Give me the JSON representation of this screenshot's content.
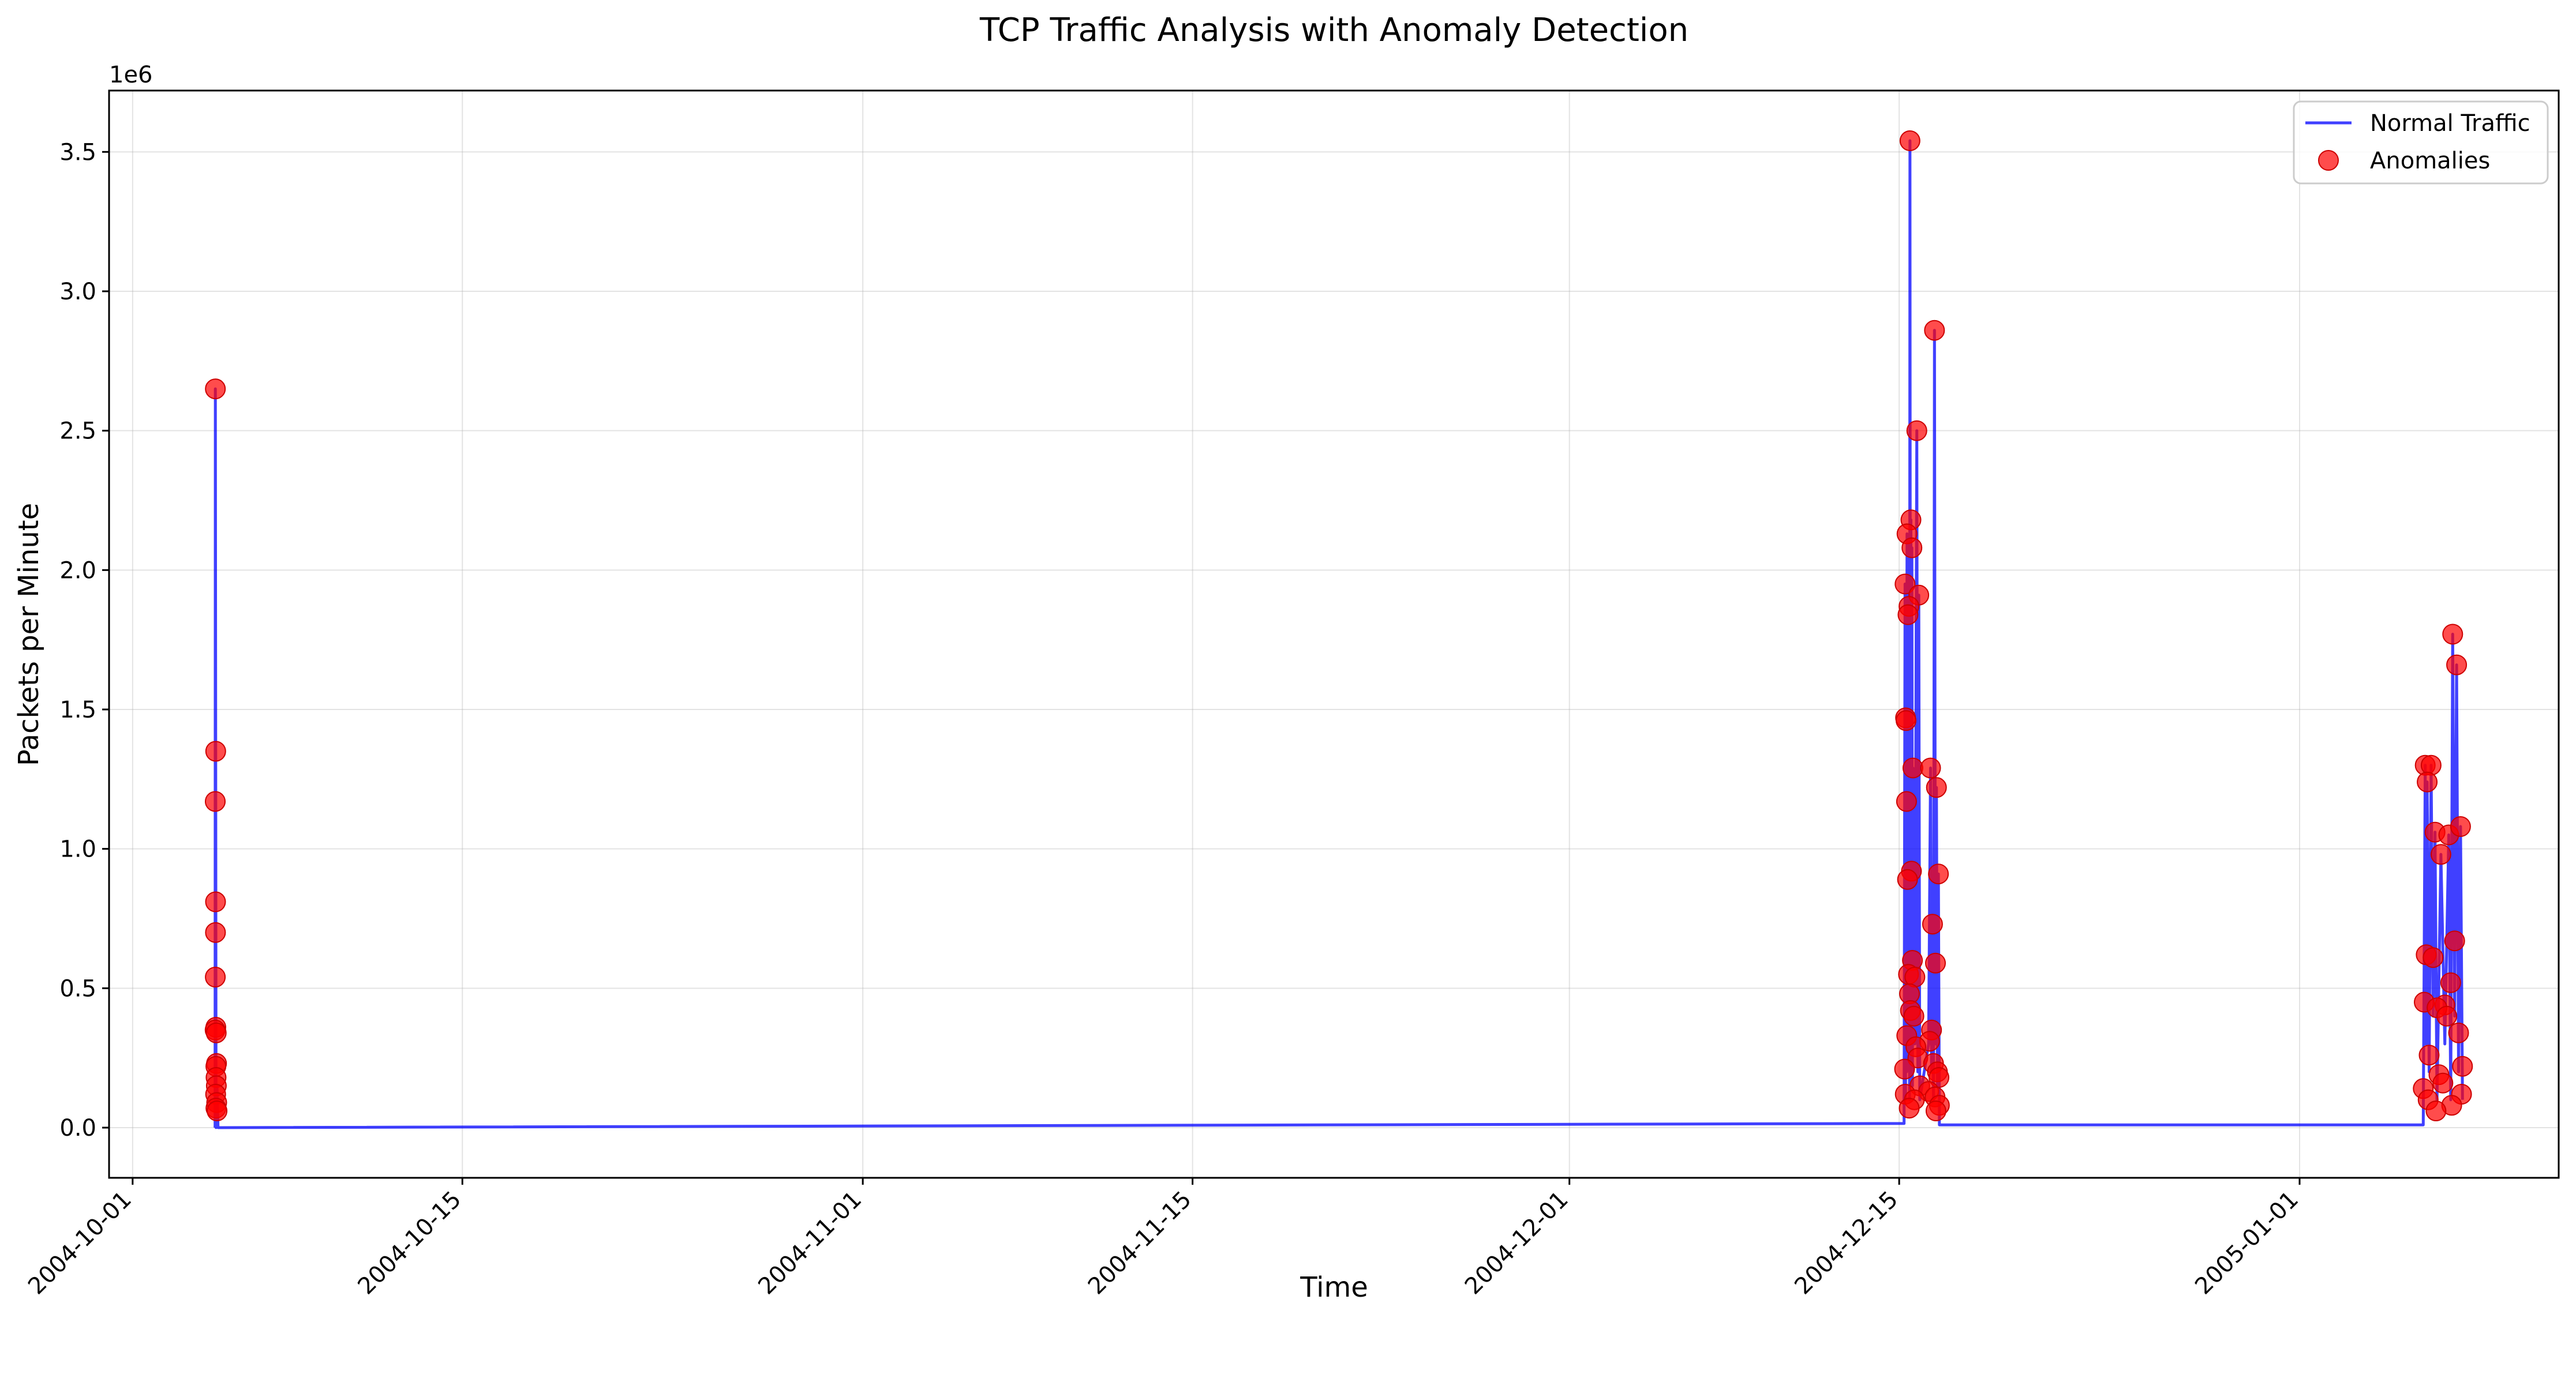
{
  "chart_data": {
    "type": "line",
    "title": "TCP Traffic Analysis with Anomaly Detection",
    "xlabel": "Time",
    "ylabel": "Packets per Minute",
    "y_offset_label": "1e6",
    "x_ticks": [
      "2004-10-01",
      "2004-10-15",
      "2004-11-01",
      "2004-11-15",
      "2004-12-01",
      "2004-12-15",
      "2005-01-01"
    ],
    "y_ticks": [
      "0.0",
      "0.5",
      "1.0",
      "1.5",
      "2.0",
      "2.5",
      "3.0",
      "3.5"
    ],
    "y_tick_values": [
      0,
      500000,
      1000000,
      1500000,
      2000000,
      2500000,
      3000000,
      3500000
    ],
    "xlim": [
      "2004-09-30T00:00",
      "2005-01-12T00:00"
    ],
    "ylim": [
      -180000,
      3720000
    ],
    "grid": true,
    "legend_position": "top-right",
    "colors": {
      "line": "#0000ff",
      "anomaly": "#ff0000"
    },
    "series": [
      {
        "name": "Normal Traffic",
        "kind": "line",
        "points": [
          [
            "2004-10-04T12:00",
            0
          ],
          [
            "2004-10-04T12:20",
            2650000
          ],
          [
            "2004-10-04T12:40",
            1350000
          ],
          [
            "2004-10-04T13:00",
            0
          ],
          [
            "2004-10-04T14:00",
            150000
          ],
          [
            "2004-10-04T15:00",
            0
          ],
          [
            "2004-12-15T05:00",
            15000
          ],
          [
            "2004-12-15T06:00",
            1950000
          ],
          [
            "2004-12-15T06:30",
            100000
          ],
          [
            "2004-12-15T07:00",
            1470000
          ],
          [
            "2004-12-15T07:30",
            200000
          ],
          [
            "2004-12-15T08:00",
            2130000
          ],
          [
            "2004-12-15T08:30",
            300000
          ],
          [
            "2004-12-15T09:00",
            1840000
          ],
          [
            "2004-12-15T09:30",
            400000
          ],
          [
            "2004-12-15T10:00",
            1870000
          ],
          [
            "2004-12-15T10:30",
            100000
          ],
          [
            "2004-12-15T11:00",
            3540000
          ],
          [
            "2004-12-15T11:30",
            500000
          ],
          [
            "2004-12-15T12:00",
            2180000
          ],
          [
            "2004-12-15T12:30",
            200000
          ],
          [
            "2004-12-15T13:00",
            2080000
          ],
          [
            "2004-12-15T13:30",
            150000
          ],
          [
            "2004-12-15T14:00",
            1290000
          ],
          [
            "2004-12-15T16:00",
            300000
          ],
          [
            "2004-12-15T18:00",
            2500000
          ],
          [
            "2004-12-15T19:00",
            200000
          ],
          [
            "2004-12-15T20:00",
            1910000
          ],
          [
            "2004-12-15T21:00",
            100000
          ],
          [
            "2004-12-16T06:00",
            300000
          ],
          [
            "2004-12-16T08:00",
            1290000
          ],
          [
            "2004-12-16T09:00",
            200000
          ],
          [
            "2004-12-16T10:00",
            730000
          ],
          [
            "2004-12-16T11:00",
            100000
          ],
          [
            "2004-12-16T12:00",
            2860000
          ],
          [
            "2004-12-16T13:00",
            300000
          ],
          [
            "2004-12-16T14:00",
            1220000
          ],
          [
            "2004-12-16T15:00",
            150000
          ],
          [
            "2004-12-16T16:00",
            910000
          ],
          [
            "2004-12-16T17:00",
            10000
          ],
          [
            "2005-01-06T06:00",
            10000
          ],
          [
            "2005-01-06T08:00",
            1300000
          ],
          [
            "2005-01-06T09:00",
            300000
          ],
          [
            "2005-01-06T10:00",
            1240000
          ],
          [
            "2005-01-06T12:00",
            200000
          ],
          [
            "2005-01-06T14:00",
            1300000
          ],
          [
            "2005-01-06T16:00",
            400000
          ],
          [
            "2005-01-06T18:00",
            1060000
          ],
          [
            "2005-01-06T20:00",
            100000
          ],
          [
            "2005-01-07T00:00",
            980000
          ],
          [
            "2005-01-07T04:00",
            300000
          ],
          [
            "2005-01-07T08:00",
            1050000
          ],
          [
            "2005-01-07T10:00",
            100000
          ],
          [
            "2005-01-07T12:00",
            1770000
          ],
          [
            "2005-01-07T14:00",
            400000
          ],
          [
            "2005-01-07T16:00",
            1660000
          ],
          [
            "2005-01-07T18:00",
            200000
          ],
          [
            "2005-01-07T20:00",
            1080000
          ],
          [
            "2005-01-07T22:00",
            100000
          ]
        ]
      },
      {
        "name": "Anomalies",
        "kind": "scatter",
        "points": [
          [
            "2004-10-04T12:20",
            2650000
          ],
          [
            "2004-10-04T12:40",
            1350000
          ],
          [
            "2004-10-04T12:10",
            1170000
          ],
          [
            "2004-10-04T12:30",
            810000
          ],
          [
            "2004-10-04T12:25",
            700000
          ],
          [
            "2004-10-04T12:15",
            540000
          ],
          [
            "2004-10-04T12:45",
            360000
          ],
          [
            "2004-10-04T12:05",
            350000
          ],
          [
            "2004-10-04T13:10",
            340000
          ],
          [
            "2004-10-04T13:30",
            230000
          ],
          [
            "2004-10-04T12:50",
            220000
          ],
          [
            "2004-10-04T13:00",
            180000
          ],
          [
            "2004-10-04T13:20",
            150000
          ],
          [
            "2004-10-04T12:35",
            120000
          ],
          [
            "2004-10-04T13:40",
            90000
          ],
          [
            "2004-10-04T12:55",
            70000
          ],
          [
            "2004-10-04T14:00",
            60000
          ],
          [
            "2004-12-15T11:00",
            3540000
          ],
          [
            "2004-12-16T12:00",
            2860000
          ],
          [
            "2004-12-15T18:00",
            2500000
          ],
          [
            "2004-12-15T12:00",
            2180000
          ],
          [
            "2004-12-15T08:00",
            2130000
          ],
          [
            "2004-12-15T13:00",
            2080000
          ],
          [
            "2004-12-15T06:00",
            1950000
          ],
          [
            "2004-12-15T20:00",
            1910000
          ],
          [
            "2004-12-15T10:00",
            1870000
          ],
          [
            "2004-12-15T09:00",
            1840000
          ],
          [
            "2004-12-15T06:30",
            1470000
          ],
          [
            "2004-12-15T07:00",
            1460000
          ],
          [
            "2004-12-15T14:00",
            1290000
          ],
          [
            "2004-12-16T08:00",
            1290000
          ],
          [
            "2004-12-16T14:00",
            1220000
          ],
          [
            "2004-12-15T07:30",
            1170000
          ],
          [
            "2004-12-15T12:30",
            920000
          ],
          [
            "2004-12-16T16:00",
            910000
          ],
          [
            "2004-12-15T08:30",
            890000
          ],
          [
            "2004-12-16T10:00",
            730000
          ],
          [
            "2004-12-15T13:30",
            600000
          ],
          [
            "2004-12-16T13:00",
            590000
          ],
          [
            "2004-12-15T09:30",
            550000
          ],
          [
            "2004-12-15T16:00",
            540000
          ],
          [
            "2004-12-15T10:30",
            480000
          ],
          [
            "2004-12-15T11:30",
            420000
          ],
          [
            "2004-12-15T15:00",
            400000
          ],
          [
            "2004-12-16T09:00",
            350000
          ],
          [
            "2004-12-15T07:45",
            330000
          ],
          [
            "2004-12-16T07:00",
            310000
          ],
          [
            "2004-12-15T17:00",
            290000
          ],
          [
            "2004-12-15T19:00",
            250000
          ],
          [
            "2004-12-16T11:00",
            230000
          ],
          [
            "2004-12-15T05:30",
            210000
          ],
          [
            "2004-12-16T15:00",
            200000
          ],
          [
            "2004-12-16T16:30",
            180000
          ],
          [
            "2004-12-15T21:00",
            150000
          ],
          [
            "2004-12-16T06:00",
            130000
          ],
          [
            "2004-12-15T06:15",
            120000
          ],
          [
            "2004-12-16T12:30",
            110000
          ],
          [
            "2004-12-15T15:30",
            100000
          ],
          [
            "2004-12-16T17:00",
            80000
          ],
          [
            "2004-12-15T10:15",
            70000
          ],
          [
            "2004-12-16T13:30",
            60000
          ],
          [
            "2005-01-06T08:00",
            1300000
          ],
          [
            "2005-01-06T14:00",
            1300000
          ],
          [
            "2005-01-06T10:00",
            1240000
          ],
          [
            "2005-01-06T18:00",
            1060000
          ],
          [
            "2005-01-07T08:00",
            1050000
          ],
          [
            "2005-01-07T20:00",
            1080000
          ],
          [
            "2005-01-07T00:00",
            980000
          ],
          [
            "2005-01-07T12:00",
            1770000
          ],
          [
            "2005-01-07T16:00",
            1660000
          ],
          [
            "2005-01-07T14:00",
            670000
          ],
          [
            "2005-01-06T09:00",
            620000
          ],
          [
            "2005-01-06T16:00",
            610000
          ],
          [
            "2005-01-07T10:00",
            520000
          ],
          [
            "2005-01-06T07:00",
            450000
          ],
          [
            "2005-01-07T04:00",
            440000
          ],
          [
            "2005-01-06T20:00",
            430000
          ],
          [
            "2005-01-07T06:00",
            400000
          ],
          [
            "2005-01-07T18:00",
            340000
          ],
          [
            "2005-01-06T12:00",
            260000
          ],
          [
            "2005-01-07T22:00",
            220000
          ],
          [
            "2005-01-06T22:00",
            190000
          ],
          [
            "2005-01-07T02:00",
            160000
          ],
          [
            "2005-01-06T06:00",
            140000
          ],
          [
            "2005-01-07T21:00",
            120000
          ],
          [
            "2005-01-06T11:00",
            100000
          ],
          [
            "2005-01-07T11:00",
            80000
          ],
          [
            "2005-01-06T19:00",
            60000
          ]
        ]
      }
    ]
  }
}
